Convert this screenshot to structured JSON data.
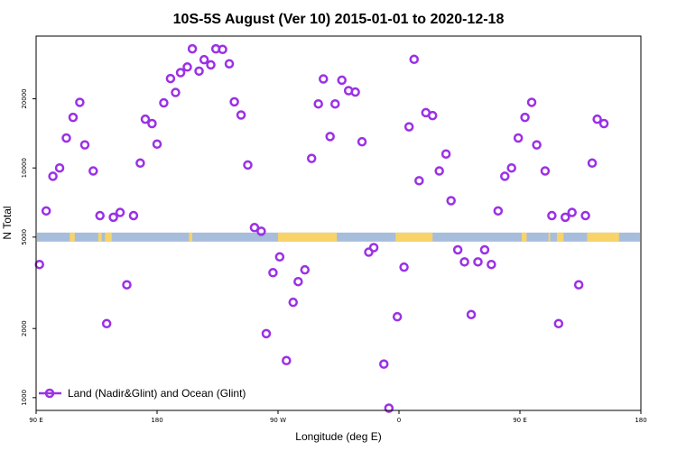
{
  "chart_data": {
    "type": "scatter",
    "title": "10S-5S August (Ver 10)   2015-01-01 to 2020-12-18",
    "xlabel": "Longitude (deg E)",
    "ylabel": "N Total",
    "xlim": [
      90,
      450
    ],
    "ylim_log": [
      880,
      37500
    ],
    "y_scale": "log",
    "grid": false,
    "x_ticks": [
      {
        "value": 90,
        "label": "90 E"
      },
      {
        "value": 162,
        "label": "180"
      },
      {
        "value": 234,
        "label": "90 W"
      },
      {
        "value": 306,
        "label": "0"
      },
      {
        "value": 378,
        "label": "90 E"
      },
      {
        "value": 450,
        "label": "180"
      }
    ],
    "y_ticks": [
      {
        "value": 1000,
        "label": "1000"
      },
      {
        "value": 2000,
        "label": "2000"
      },
      {
        "value": 5000,
        "label": "5000"
      },
      {
        "value": 10000,
        "label": "10000"
      },
      {
        "value": 20000,
        "label": "20000"
      }
    ],
    "legend": {
      "position": "bottom-left",
      "entries": [
        "Land (Nadir&Glint) and Ocean (Glint)"
      ]
    },
    "series": [
      {
        "name": "Land (Nadir&Glint) and Ocean (Glint)",
        "color": "#9b30e6",
        "marker": "open-circle",
        "points": [
          [
            92,
            3800
          ],
          [
            96,
            6500
          ],
          [
            100,
            9200
          ],
          [
            104,
            10000
          ],
          [
            108,
            13500
          ],
          [
            112,
            16600
          ],
          [
            116,
            19300
          ],
          [
            119,
            12600
          ],
          [
            124,
            9700
          ],
          [
            128,
            6200
          ],
          [
            132,
            2100
          ],
          [
            136,
            6100
          ],
          [
            140,
            6400
          ],
          [
            144,
            3100
          ],
          [
            148,
            6200
          ],
          [
            152,
            10500
          ],
          [
            155,
            16300
          ],
          [
            159,
            15600
          ],
          [
            162,
            12700
          ],
          [
            166,
            19200
          ],
          [
            170,
            24500
          ],
          [
            173,
            21300
          ],
          [
            176,
            26000
          ],
          [
            180,
            27500
          ],
          [
            183,
            33000
          ],
          [
            187,
            26400
          ],
          [
            190,
            29600
          ],
          [
            194,
            28100
          ],
          [
            197,
            33000
          ],
          [
            201,
            32800
          ],
          [
            205,
            28400
          ],
          [
            208,
            19400
          ],
          [
            212,
            17000
          ],
          [
            216,
            10300
          ],
          [
            220,
            5500
          ],
          [
            224,
            5300
          ],
          [
            227,
            1900
          ],
          [
            231,
            3500
          ],
          [
            235,
            4100
          ],
          [
            239,
            1450
          ],
          [
            243,
            2600
          ],
          [
            246,
            3200
          ],
          [
            250,
            3600
          ],
          [
            254,
            11000
          ],
          [
            258,
            19000
          ],
          [
            261,
            24400
          ],
          [
            265,
            13700
          ],
          [
            268,
            19000
          ],
          [
            272,
            24100
          ],
          [
            276,
            21700
          ],
          [
            280,
            21400
          ],
          [
            284,
            13000
          ],
          [
            288,
            4300
          ],
          [
            291,
            4500
          ],
          [
            297,
            1400
          ],
          [
            300,
            900
          ],
          [
            305,
            2250
          ],
          [
            309,
            3700
          ],
          [
            312,
            15100
          ],
          [
            315,
            29700
          ],
          [
            318,
            8800
          ],
          [
            322,
            17400
          ],
          [
            326,
            16900
          ],
          [
            330,
            9700
          ],
          [
            334,
            11500
          ],
          [
            337,
            7200
          ],
          [
            341,
            4400
          ],
          [
            345,
            3900
          ],
          [
            349,
            2300
          ],
          [
            353,
            3900
          ],
          [
            357,
            4400
          ],
          [
            361,
            3800
          ],
          [
            365,
            6500
          ],
          [
            369,
            9200
          ],
          [
            373,
            10000
          ],
          [
            377,
            13500
          ],
          [
            381,
            16600
          ],
          [
            385,
            19300
          ],
          [
            388,
            12600
          ],
          [
            393,
            9700
          ],
          [
            397,
            6200
          ],
          [
            401,
            2100
          ],
          [
            405,
            6100
          ],
          [
            409,
            6400
          ],
          [
            413,
            3100
          ],
          [
            417,
            6200
          ],
          [
            421,
            10500
          ],
          [
            424,
            16300
          ],
          [
            428,
            15600
          ]
        ]
      }
    ],
    "basemap_strip": {
      "y_value": 5000,
      "ocean_color": "#a6bddb",
      "land_color": "#f7d36a",
      "land_segments": [
        [
          110,
          113
        ],
        [
          127,
          129
        ],
        [
          131,
          135
        ],
        [
          181,
          183
        ],
        [
          234,
          269
        ],
        [
          304,
          326
        ],
        [
          379,
          382
        ],
        [
          395,
          396
        ],
        [
          400,
          404
        ],
        [
          418,
          437
        ]
      ]
    }
  }
}
